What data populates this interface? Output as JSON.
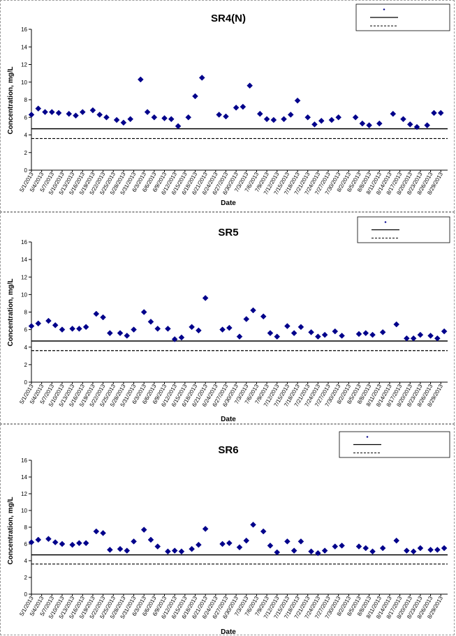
{
  "chart_data": [
    {
      "type": "scatter",
      "title": "SR4(N)",
      "xlabel": "Date",
      "ylabel": "Concentration, mg/L",
      "ylim": [
        0,
        16
      ],
      "yticks": [
        0,
        2,
        4,
        6,
        8,
        10,
        12,
        14,
        16
      ],
      "xlim": [
        "5/1/2013",
        "8/31/2013"
      ],
      "x_tick_labels": [
        "5/1/2013",
        "5/4/2013",
        "5/7/2013",
        "5/10/2013",
        "5/13/2013",
        "5/16/2013",
        "5/19/2013",
        "5/22/2013",
        "5/25/2013",
        "5/28/2013",
        "5/31/2013",
        "6/3/2013",
        "6/6/2013",
        "6/9/2013",
        "6/12/2013",
        "6/15/2013",
        "6/18/2013",
        "6/21/2013",
        "6/24/2013",
        "6/27/2013",
        "6/30/2013",
        "7/3/2013",
        "7/6/2013",
        "7/9/2013",
        "7/12/2013",
        "7/15/2013",
        "7/18/2013",
        "7/21/2013",
        "7/24/2013",
        "7/27/2013",
        "7/30/2013",
        "8/2/2013",
        "8/5/2013",
        "8/8/2013",
        "8/11/2013",
        "8/14/2013",
        "8/17/2013",
        "8/20/2013",
        "8/23/2013",
        "8/26/2013",
        "8/29/2013"
      ],
      "reference_lines": [
        {
          "y": 4.7,
          "style": "solid"
        },
        {
          "y": 3.6,
          "style": "dashed"
        }
      ],
      "legend": {
        "placement": "top-right"
      },
      "color": "#00008b",
      "points": [
        {
          "x": "5/1/2013",
          "y": 6.3
        },
        {
          "x": "5/3/2013",
          "y": 7.0
        },
        {
          "x": "5/5/2013",
          "y": 6.6
        },
        {
          "x": "5/7/2013",
          "y": 6.6
        },
        {
          "x": "5/9/2013",
          "y": 6.5
        },
        {
          "x": "5/12/2013",
          "y": 6.4
        },
        {
          "x": "5/14/2013",
          "y": 6.2
        },
        {
          "x": "5/16/2013",
          "y": 6.6
        },
        {
          "x": "5/19/2013",
          "y": 6.8
        },
        {
          "x": "5/21/2013",
          "y": 6.3
        },
        {
          "x": "5/23/2013",
          "y": 6.0
        },
        {
          "x": "5/26/2013",
          "y": 5.7
        },
        {
          "x": "5/28/2013",
          "y": 5.4
        },
        {
          "x": "5/30/2013",
          "y": 5.8
        },
        {
          "x": "6/2/2013",
          "y": 10.3
        },
        {
          "x": "6/4/2013",
          "y": 6.6
        },
        {
          "x": "6/6/2013",
          "y": 6.0
        },
        {
          "x": "6/9/2013",
          "y": 5.9
        },
        {
          "x": "6/11/2013",
          "y": 5.8
        },
        {
          "x": "6/13/2013",
          "y": 5.0
        },
        {
          "x": "6/16/2013",
          "y": 6.0
        },
        {
          "x": "6/18/2013",
          "y": 8.4
        },
        {
          "x": "6/20/2013",
          "y": 10.5
        },
        {
          "x": "6/25/2013",
          "y": 6.3
        },
        {
          "x": "6/27/2013",
          "y": 6.1
        },
        {
          "x": "6/30/2013",
          "y": 7.1
        },
        {
          "x": "7/2/2013",
          "y": 7.2
        },
        {
          "x": "7/4/2013",
          "y": 9.6
        },
        {
          "x": "7/7/2013",
          "y": 6.4
        },
        {
          "x": "7/9/2013",
          "y": 5.8
        },
        {
          "x": "7/11/2013",
          "y": 5.7
        },
        {
          "x": "7/14/2013",
          "y": 5.8
        },
        {
          "x": "7/16/2013",
          "y": 6.3
        },
        {
          "x": "7/18/2013",
          "y": 7.9
        },
        {
          "x": "7/21/2013",
          "y": 6.0
        },
        {
          "x": "7/23/2013",
          "y": 5.2
        },
        {
          "x": "7/25/2013",
          "y": 5.6
        },
        {
          "x": "7/28/2013",
          "y": 5.7
        },
        {
          "x": "7/30/2013",
          "y": 6.0
        },
        {
          "x": "8/4/2013",
          "y": 6.0
        },
        {
          "x": "8/6/2013",
          "y": 5.3
        },
        {
          "x": "8/8/2013",
          "y": 5.1
        },
        {
          "x": "8/11/2013",
          "y": 5.3
        },
        {
          "x": "8/15/2013",
          "y": 6.4
        },
        {
          "x": "8/18/2013",
          "y": 5.8
        },
        {
          "x": "8/20/2013",
          "y": 5.2
        },
        {
          "x": "8/22/2013",
          "y": 4.9
        },
        {
          "x": "8/25/2013",
          "y": 5.1
        },
        {
          "x": "8/27/2013",
          "y": 6.5
        },
        {
          "x": "8/29/2013",
          "y": 6.5
        }
      ]
    },
    {
      "type": "scatter",
      "title": "SR5",
      "xlabel": "Date",
      "ylabel": "Concentration, mg/L",
      "ylim": [
        0,
        16
      ],
      "yticks": [
        0,
        2,
        4,
        6,
        8,
        10,
        12,
        14,
        16
      ],
      "xlim": [
        "5/1/2013",
        "8/31/2013"
      ],
      "x_tick_labels": [
        "5/1/2013",
        "5/4/2013",
        "5/7/2013",
        "5/10/2013",
        "5/13/2013",
        "5/16/2013",
        "5/19/2013",
        "5/22/2013",
        "5/25/2013",
        "5/28/2013",
        "5/31/2013",
        "6/3/2013",
        "6/6/2013",
        "6/9/2013",
        "6/12/2013",
        "6/15/2013",
        "6/18/2013",
        "6/21/2013",
        "6/24/2013",
        "6/27/2013",
        "6/30/2013",
        "7/3/2013",
        "7/6/2013",
        "7/9/2013",
        "7/12/2013",
        "7/15/2013",
        "7/18/2013",
        "7/21/2013",
        "7/24/2013",
        "7/27/2013",
        "7/30/2013",
        "8/2/2013",
        "8/5/2013",
        "8/8/2013",
        "8/11/2013",
        "8/14/2013",
        "8/17/2013",
        "8/20/2013",
        "8/23/2013",
        "8/26/2013",
        "8/29/2013"
      ],
      "reference_lines": [
        {
          "y": 4.7,
          "style": "solid"
        },
        {
          "y": 3.6,
          "style": "dashed"
        }
      ],
      "legend": {
        "placement": "top-right"
      },
      "color": "#00008b",
      "points": [
        {
          "x": "5/1/2013",
          "y": 6.4
        },
        {
          "x": "5/3/2013",
          "y": 6.7
        },
        {
          "x": "5/6/2013",
          "y": 7.0
        },
        {
          "x": "5/8/2013",
          "y": 6.5
        },
        {
          "x": "5/10/2013",
          "y": 6.0
        },
        {
          "x": "5/13/2013",
          "y": 6.1
        },
        {
          "x": "5/15/2013",
          "y": 6.1
        },
        {
          "x": "5/17/2013",
          "y": 6.3
        },
        {
          "x": "5/20/2013",
          "y": 7.8
        },
        {
          "x": "5/22/2013",
          "y": 7.4
        },
        {
          "x": "5/24/2013",
          "y": 5.6
        },
        {
          "x": "5/27/2013",
          "y": 5.6
        },
        {
          "x": "5/29/2013",
          "y": 5.3
        },
        {
          "x": "5/31/2013",
          "y": 6.0
        },
        {
          "x": "6/3/2013",
          "y": 8.0
        },
        {
          "x": "6/5/2013",
          "y": 6.9
        },
        {
          "x": "6/7/2013",
          "y": 6.1
        },
        {
          "x": "6/10/2013",
          "y": 6.1
        },
        {
          "x": "6/12/2013",
          "y": 4.9
        },
        {
          "x": "6/14/2013",
          "y": 5.1
        },
        {
          "x": "6/17/2013",
          "y": 6.3
        },
        {
          "x": "6/19/2013",
          "y": 5.9
        },
        {
          "x": "6/21/2013",
          "y": 9.6
        },
        {
          "x": "6/26/2013",
          "y": 6.0
        },
        {
          "x": "6/28/2013",
          "y": 6.2
        },
        {
          "x": "7/1/2013",
          "y": 5.2
        },
        {
          "x": "7/3/2013",
          "y": 7.2
        },
        {
          "x": "7/5/2013",
          "y": 8.2
        },
        {
          "x": "7/8/2013",
          "y": 7.5
        },
        {
          "x": "7/10/2013",
          "y": 5.6
        },
        {
          "x": "7/12/2013",
          "y": 5.2
        },
        {
          "x": "7/15/2013",
          "y": 6.4
        },
        {
          "x": "7/17/2013",
          "y": 5.6
        },
        {
          "x": "7/19/2013",
          "y": 6.3
        },
        {
          "x": "7/22/2013",
          "y": 5.7
        },
        {
          "x": "7/24/2013",
          "y": 5.2
        },
        {
          "x": "7/26/2013",
          "y": 5.4
        },
        {
          "x": "7/29/2013",
          "y": 5.8
        },
        {
          "x": "7/31/2013",
          "y": 5.3
        },
        {
          "x": "8/5/2013",
          "y": 5.5
        },
        {
          "x": "8/7/2013",
          "y": 5.6
        },
        {
          "x": "8/9/2013",
          "y": 5.4
        },
        {
          "x": "8/12/2013",
          "y": 5.7
        },
        {
          "x": "8/16/2013",
          "y": 6.6
        },
        {
          "x": "8/19/2013",
          "y": 5.0
        },
        {
          "x": "8/21/2013",
          "y": 5.0
        },
        {
          "x": "8/23/2013",
          "y": 5.4
        },
        {
          "x": "8/26/2013",
          "y": 5.3
        },
        {
          "x": "8/28/2013",
          "y": 5.0
        },
        {
          "x": "8/30/2013",
          "y": 5.8
        }
      ]
    },
    {
      "type": "scatter",
      "title": "SR6",
      "xlabel": "Date",
      "ylabel": "Concentration, mg/L",
      "ylim": [
        0,
        16
      ],
      "yticks": [
        0,
        2,
        4,
        6,
        8,
        10,
        12,
        14,
        16
      ],
      "xlim": [
        "5/1/2013",
        "8/31/2013"
      ],
      "x_tick_labels": [
        "5/1/2013",
        "5/4/2013",
        "5/7/2013",
        "5/10/2013",
        "5/13/2013",
        "5/16/2013",
        "5/19/2013",
        "5/22/2013",
        "5/25/2013",
        "5/28/2013",
        "5/31/2013",
        "6/3/2013",
        "6/6/2013",
        "6/9/2013",
        "6/12/2013",
        "6/15/2013",
        "6/18/2013",
        "6/21/2013",
        "6/24/2013",
        "6/27/2013",
        "6/30/2013",
        "7/3/2013",
        "7/6/2013",
        "7/9/2013",
        "7/12/2013",
        "7/15/2013",
        "7/18/2013",
        "7/21/2013",
        "7/24/2013",
        "7/27/2013",
        "7/30/2013",
        "8/2/2013",
        "8/5/2013",
        "8/8/2013",
        "8/11/2013",
        "8/14/2013",
        "8/17/2013",
        "8/20/2013",
        "8/23/2013",
        "8/26/2013",
        "8/29/2013"
      ],
      "reference_lines": [
        {
          "y": 4.7,
          "style": "solid"
        },
        {
          "y": 3.6,
          "style": "dashed"
        }
      ],
      "legend": {
        "placement": "top-right"
      },
      "color": "#00008b",
      "points": [
        {
          "x": "5/1/2013",
          "y": 6.2
        },
        {
          "x": "5/3/2013",
          "y": 6.5
        },
        {
          "x": "5/6/2013",
          "y": 6.6
        },
        {
          "x": "5/8/2013",
          "y": 6.2
        },
        {
          "x": "5/10/2013",
          "y": 6.0
        },
        {
          "x": "5/13/2013",
          "y": 5.9
        },
        {
          "x": "5/15/2013",
          "y": 6.1
        },
        {
          "x": "5/17/2013",
          "y": 6.1
        },
        {
          "x": "5/20/2013",
          "y": 7.5
        },
        {
          "x": "5/22/2013",
          "y": 7.3
        },
        {
          "x": "5/24/2013",
          "y": 5.3
        },
        {
          "x": "5/27/2013",
          "y": 5.4
        },
        {
          "x": "5/29/2013",
          "y": 5.2
        },
        {
          "x": "5/31/2013",
          "y": 6.3
        },
        {
          "x": "6/3/2013",
          "y": 7.7
        },
        {
          "x": "6/5/2013",
          "y": 6.5
        },
        {
          "x": "6/7/2013",
          "y": 5.7
        },
        {
          "x": "6/10/2013",
          "y": 5.1
        },
        {
          "x": "6/12/2013",
          "y": 5.2
        },
        {
          "x": "6/14/2013",
          "y": 5.1
        },
        {
          "x": "6/17/2013",
          "y": 5.4
        },
        {
          "x": "6/19/2013",
          "y": 5.9
        },
        {
          "x": "6/21/2013",
          "y": 7.8
        },
        {
          "x": "6/26/2013",
          "y": 6.0
        },
        {
          "x": "6/28/2013",
          "y": 6.1
        },
        {
          "x": "7/1/2013",
          "y": 5.6
        },
        {
          "x": "7/3/2013",
          "y": 6.4
        },
        {
          "x": "7/5/2013",
          "y": 8.3
        },
        {
          "x": "7/8/2013",
          "y": 7.5
        },
        {
          "x": "7/10/2013",
          "y": 5.8
        },
        {
          "x": "7/12/2013",
          "y": 5.0
        },
        {
          "x": "7/15/2013",
          "y": 6.3
        },
        {
          "x": "7/17/2013",
          "y": 5.2
        },
        {
          "x": "7/19/2013",
          "y": 6.3
        },
        {
          "x": "7/22/2013",
          "y": 5.1
        },
        {
          "x": "7/24/2013",
          "y": 4.9
        },
        {
          "x": "7/26/2013",
          "y": 5.2
        },
        {
          "x": "7/29/2013",
          "y": 5.7
        },
        {
          "x": "7/31/2013",
          "y": 5.8
        },
        {
          "x": "8/5/2013",
          "y": 5.7
        },
        {
          "x": "8/7/2013",
          "y": 5.5
        },
        {
          "x": "8/9/2013",
          "y": 5.1
        },
        {
          "x": "8/12/2013",
          "y": 5.5
        },
        {
          "x": "8/16/2013",
          "y": 6.4
        },
        {
          "x": "8/19/2013",
          "y": 5.2
        },
        {
          "x": "8/21/2013",
          "y": 5.1
        },
        {
          "x": "8/23/2013",
          "y": 5.5
        },
        {
          "x": "8/26/2013",
          "y": 5.3
        },
        {
          "x": "8/28/2013",
          "y": 5.3
        },
        {
          "x": "8/30/2013",
          "y": 5.5
        }
      ]
    }
  ]
}
